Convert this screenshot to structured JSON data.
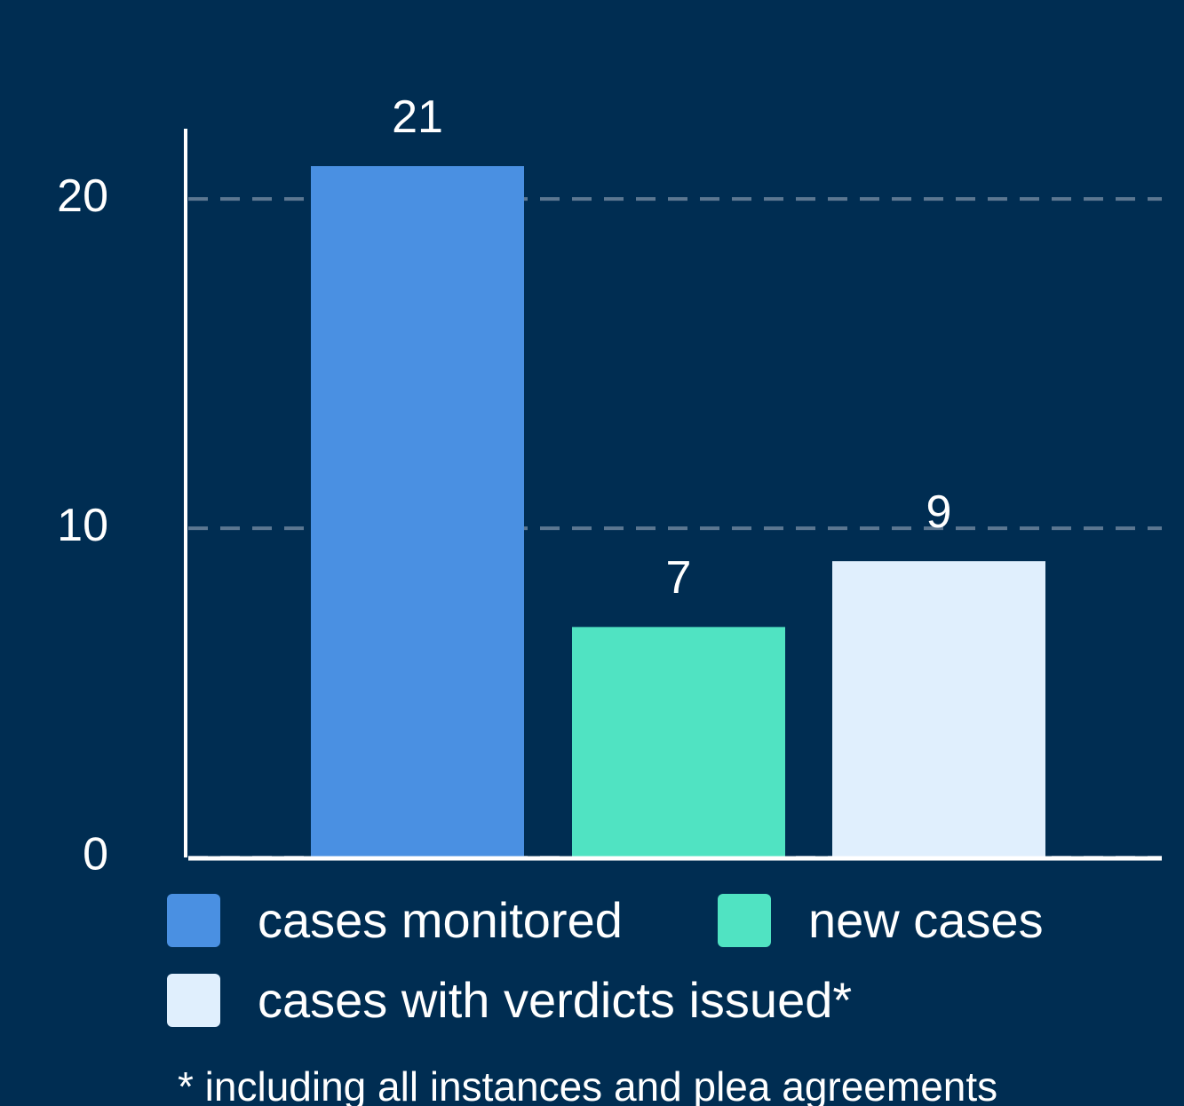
{
  "chart_data": {
    "type": "bar",
    "series": [
      {
        "name": "cases monitored",
        "color": "#4a90e2",
        "values": [
          21
        ]
      },
      {
        "name": "new cases",
        "color": "#50e3c2",
        "values": [
          7
        ]
      },
      {
        "name": "cases with verdicts issued*",
        "color": "#e0effd",
        "values": [
          9
        ]
      }
    ],
    "ylim": [
      0,
      22
    ],
    "yticks": [
      0,
      10,
      20
    ],
    "grid": true,
    "note": "* including all instances and plea agreements"
  }
}
